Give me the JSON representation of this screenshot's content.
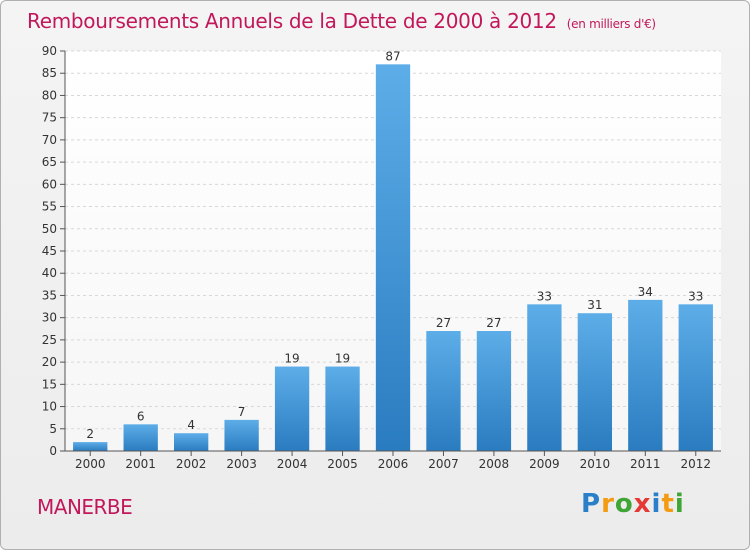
{
  "title": "Remboursements Annuels de la Dette de 2000 à 2012",
  "subtitle": "(en milliers d'€)",
  "commune": "MANERBE",
  "logo": "Proxiti",
  "colors": {
    "accent": "#c2185b",
    "bar_light": "#5dade8",
    "bar_dark": "#2a7cc0"
  },
  "chart_data": {
    "type": "bar",
    "categories": [
      "2000",
      "2001",
      "2002",
      "2003",
      "2004",
      "2005",
      "2006",
      "2007",
      "2008",
      "2009",
      "2010",
      "2011",
      "2012"
    ],
    "values": [
      2,
      6,
      4,
      7,
      19,
      19,
      87,
      27,
      27,
      33,
      31,
      34,
      33
    ],
    "title": "Remboursements Annuels de la Dette de 2000 à 2012",
    "subtitle": "(en milliers d'€)",
    "ylim": [
      0,
      90
    ],
    "yticks": [
      0,
      5,
      10,
      15,
      20,
      25,
      30,
      35,
      40,
      45,
      50,
      55,
      60,
      65,
      70,
      75,
      80,
      85,
      90
    ],
    "grid": true,
    "legend": "none"
  }
}
